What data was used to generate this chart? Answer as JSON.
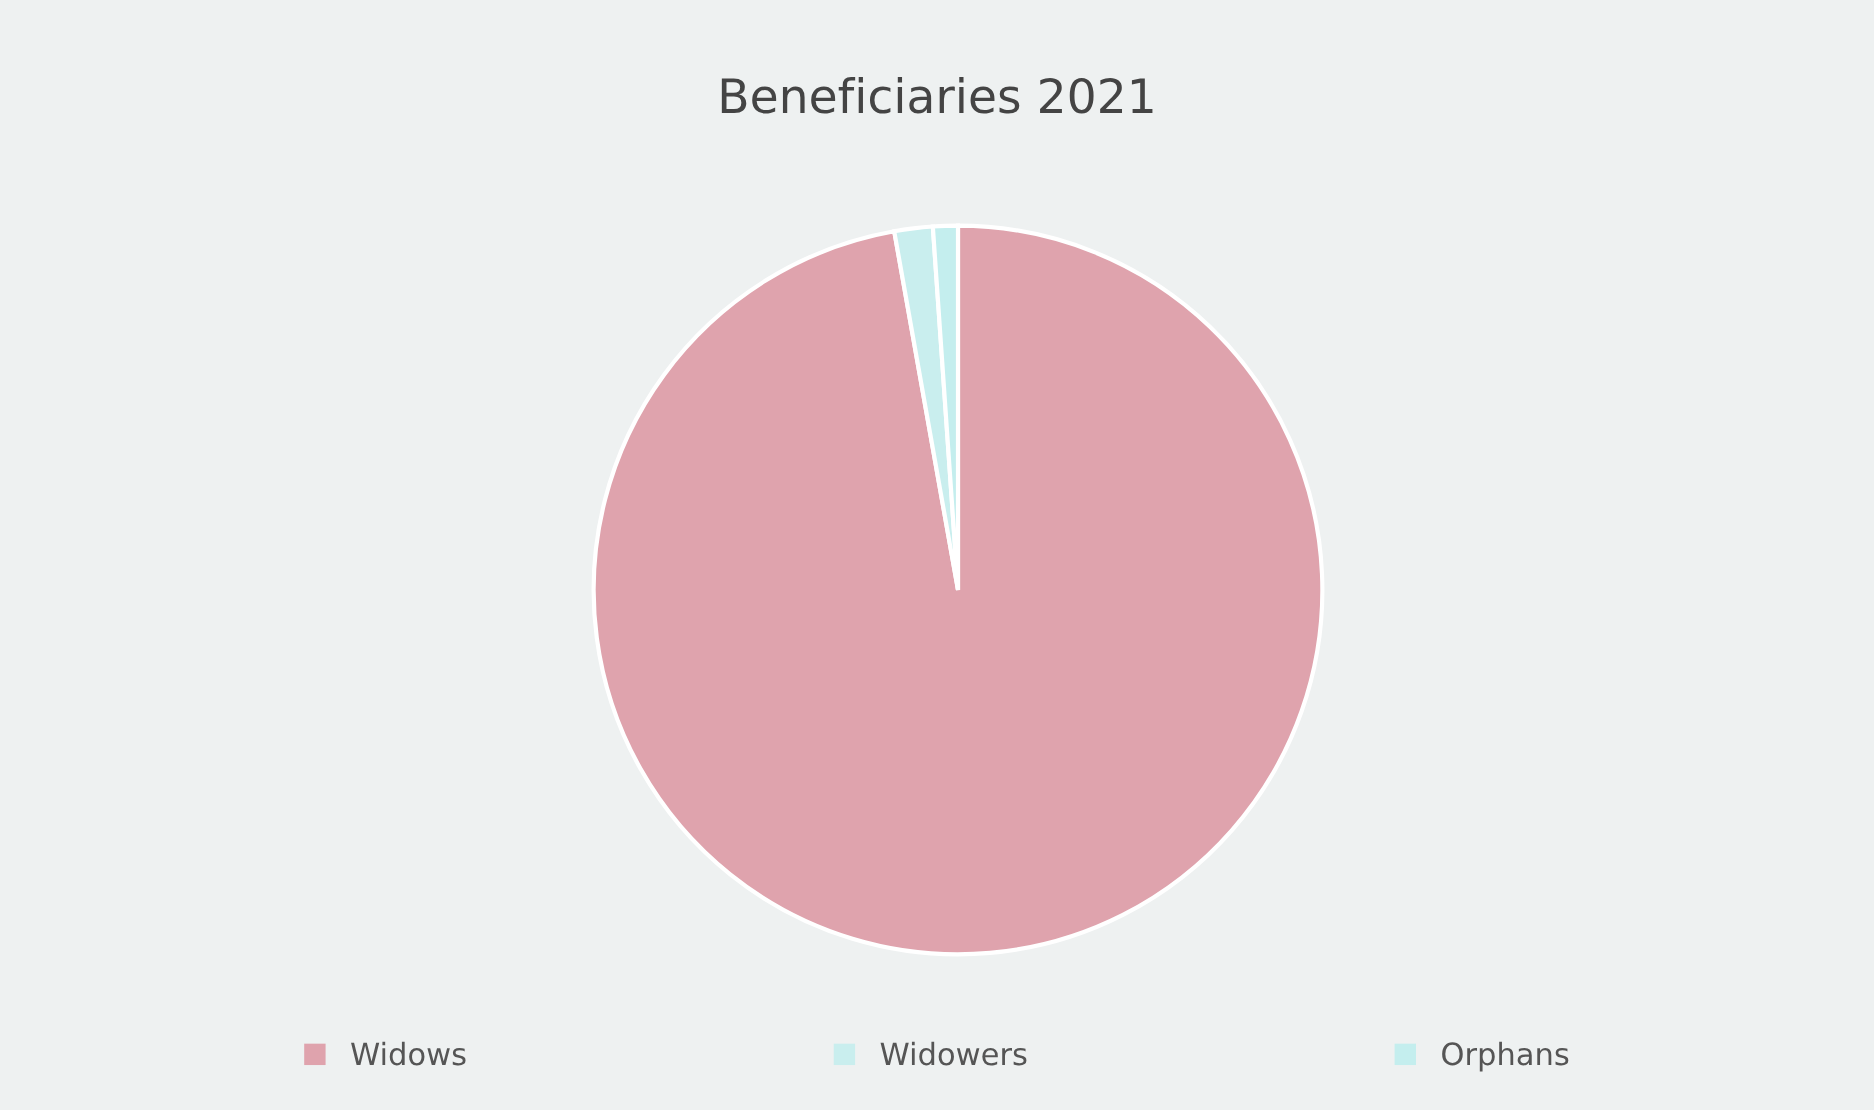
{
  "chart_data": {
    "type": "pie",
    "title": "Beneficiaries 2021",
    "categories": [
      "Widows",
      "Widowers",
      "Orphans"
    ],
    "values": [
      97.2,
      1.7,
      1.1
    ],
    "colors": [
      "#dfa3ad",
      "#c9eeee",
      "#c4eeee"
    ],
    "legend": "bottom"
  }
}
